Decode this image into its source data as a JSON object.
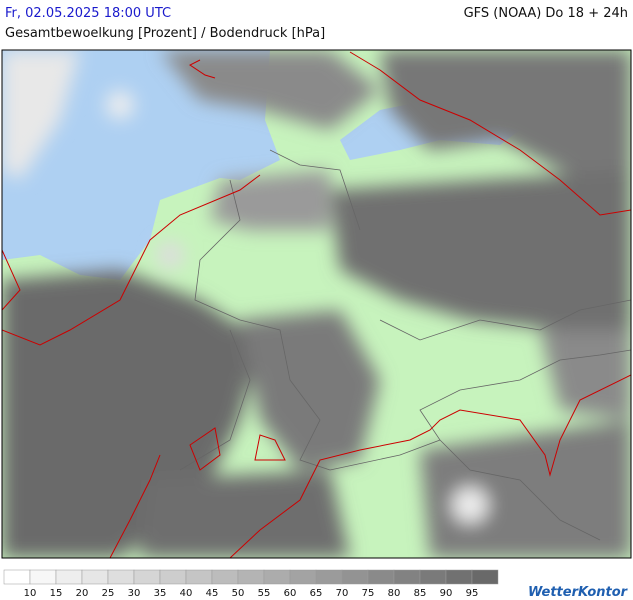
{
  "header": {
    "datetime": "Fr, 02.05.2025 18:00 UTC",
    "model": "GFS (NOAA) Do 18 + 24h",
    "subtitle": "Gesamtbewoelkung [Prozent] / Bodendruck [hPa]"
  },
  "legend": {
    "labels": [
      10,
      15,
      20,
      25,
      30,
      35,
      40,
      45,
      50,
      55,
      60,
      65,
      70,
      75,
      80,
      85,
      90,
      95
    ]
  },
  "brand": "WetterKontor"
}
